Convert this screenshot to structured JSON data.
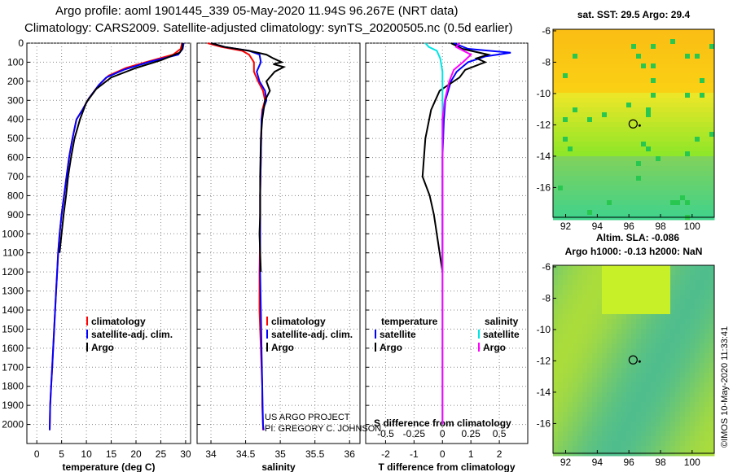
{
  "header": {
    "title_line1": "Argo profile: aoml 1901445_339 05-May-2020 11.94S 96.267E (NRT data)",
    "title_line2": "Climatology: CARS2009. Satellite-adjusted climatology: synTS_20200505.nc (0.5d earlier)"
  },
  "colors": {
    "climatology": "#ff0000",
    "satellite": "#0000ff",
    "argo": "#000000",
    "sat_T": "#0000ff",
    "sat_S": "#00e5e5",
    "argo_T": "#000000",
    "argo_S": "#ff00ff"
  },
  "credits": {
    "project": "US ARGO PROJECT",
    "pi": "PI: GREGORY C. JOHNSON",
    "imos": "©IMOS 10-May-2020 11:33:41"
  },
  "legends": {
    "temp": [
      {
        "key": "climatology",
        "label": "climatology"
      },
      {
        "key": "satellite",
        "label": "satellite-adj. clim."
      },
      {
        "key": "argo",
        "label": "Argo"
      }
    ],
    "sal": [
      {
        "key": "climatology",
        "label": "climatology"
      },
      {
        "key": "satellite",
        "label": "satellite-adj. clim."
      },
      {
        "key": "argo",
        "label": "Argo"
      }
    ],
    "diff_T_title": "temperature",
    "diff_S_title": "salinity",
    "diff_T": [
      {
        "key": "sat_T",
        "label": "satellite"
      },
      {
        "key": "argo_T",
        "label": "Argo"
      }
    ],
    "diff_S": [
      {
        "key": "sat_S",
        "label": "satellite"
      },
      {
        "key": "argo_S",
        "label": "Argo"
      }
    ],
    "s_diff_label": "S difference from climatology"
  },
  "maps": {
    "sst": {
      "title": "sat. SST: 29.5 Argo: 29.4",
      "xticks": [
        "92",
        "94",
        "96",
        "98",
        "100"
      ],
      "yticks": [
        "-6",
        "-8",
        "-10",
        "-12",
        "-14",
        "-16"
      ]
    },
    "ssh": {
      "title1": "Altim. SLA: -0.086",
      "title2": "Argo h1000: -0.13 h2000: NaN",
      "xticks": [
        "92",
        "94",
        "96",
        "98",
        "100"
      ],
      "yticks": [
        "-6",
        "-8",
        "-10",
        "-12",
        "-14",
        "-16"
      ]
    }
  },
  "chart_data": [
    {
      "type": "line",
      "name": "temperature",
      "xlabel": "temperature (deg C)",
      "ylabel": "",
      "xlim": [
        -2,
        31
      ],
      "ylim": [
        2100,
        0
      ],
      "xticks": [
        0,
        5,
        10,
        15,
        20,
        25,
        30
      ],
      "yticks": [
        0,
        100,
        200,
        300,
        400,
        500,
        600,
        700,
        800,
        900,
        1000,
        1100,
        1200,
        1300,
        1400,
        1500,
        1600,
        1700,
        1800,
        1900,
        2000
      ],
      "grid": true,
      "series": [
        {
          "name": "climatology",
          "color": "#ff0000",
          "x": [
            29.3,
            29.0,
            27.5,
            22.0,
            18.0,
            14.5,
            12.5,
            10.5,
            9.2,
            8.0,
            7.2,
            6.5,
            6.0,
            5.5,
            5.0,
            4.6,
            4.3,
            4.1,
            3.9,
            3.7,
            3.5,
            3.3,
            3.1,
            2.9,
            2.7,
            2.6
          ],
          "y": [
            0,
            30,
            60,
            100,
            130,
            170,
            220,
            290,
            350,
            400,
            500,
            600,
            700,
            800,
            900,
            1000,
            1100,
            1200,
            1300,
            1400,
            1500,
            1600,
            1700,
            1800,
            1900,
            2030
          ]
        },
        {
          "name": "satellite-adj. clim.",
          "color": "#0000ff",
          "x": [
            29.6,
            29.4,
            28.5,
            22.5,
            17.5,
            14.0,
            12.5,
            10.5,
            9.2,
            8.0,
            7.2,
            6.5,
            6.0,
            5.5,
            5.0,
            4.6,
            4.3,
            4.1,
            3.9,
            3.7,
            3.5,
            3.3,
            3.1,
            2.9,
            2.7,
            2.6
          ],
          "y": [
            0,
            30,
            60,
            100,
            140,
            180,
            220,
            290,
            350,
            400,
            500,
            600,
            700,
            800,
            900,
            1000,
            1100,
            1200,
            1300,
            1400,
            1500,
            1600,
            1700,
            1800,
            1900,
            2030
          ]
        },
        {
          "name": "Argo",
          "color": "#000000",
          "x": [
            29.4,
            29.3,
            28.8,
            25.0,
            20.0,
            15.0,
            12.0,
            10.0,
            8.7,
            7.6,
            6.9,
            6.3,
            5.9,
            5.4,
            5.0,
            4.6
          ],
          "y": [
            0,
            30,
            50,
            90,
            130,
            180,
            240,
            310,
            400,
            500,
            600,
            700,
            800,
            900,
            1000,
            1100
          ]
        }
      ]
    },
    {
      "type": "line",
      "name": "salinity",
      "xlabel": "salinity",
      "ylabel": "",
      "xlim": [
        33.8,
        36.15
      ],
      "ylim": [
        2100,
        0
      ],
      "xticks": [
        34,
        34.5,
        35,
        35.5,
        36
      ],
      "grid": true,
      "series": [
        {
          "name": "climatology",
          "color": "#ff0000",
          "x": [
            33.95,
            34.15,
            34.45,
            34.55,
            34.62,
            34.62,
            34.68,
            34.75,
            34.78,
            34.74,
            34.73,
            34.72,
            34.71,
            34.71,
            34.7,
            34.7,
            34.71,
            34.72,
            34.73,
            34.74,
            34.74,
            34.75,
            34.75
          ],
          "y": [
            0,
            20,
            40,
            60,
            100,
            150,
            200,
            250,
            300,
            350,
            400,
            600,
            800,
            1000,
            1200,
            1400,
            1500,
            1600,
            1700,
            1800,
            1900,
            2000,
            2030
          ]
        },
        {
          "name": "satellite-adj. clim.",
          "color": "#0000ff",
          "x": [
            34.0,
            34.2,
            34.55,
            34.7,
            34.72,
            34.66,
            34.7,
            34.78,
            34.8,
            34.75,
            34.73,
            34.72,
            34.71,
            34.71,
            34.71,
            34.72,
            34.73,
            34.74,
            34.75,
            34.76
          ],
          "y": [
            0,
            20,
            40,
            60,
            100,
            150,
            200,
            250,
            300,
            350,
            400,
            600,
            800,
            1000,
            1200,
            1400,
            1600,
            1800,
            2000,
            2030
          ]
        },
        {
          "name": "Argo",
          "color": "#000000",
          "x": [
            34.0,
            34.2,
            34.55,
            34.8,
            34.9,
            35.02,
            34.9,
            35.05,
            34.92,
            34.8,
            34.85,
            34.78,
            34.76,
            34.74,
            34.72,
            34.71,
            34.71,
            34.7,
            34.71,
            34.72
          ],
          "y": [
            0,
            20,
            40,
            60,
            80,
            100,
            110,
            125,
            150,
            200,
            250,
            300,
            350,
            400,
            500,
            700,
            900,
            1000,
            1100,
            1200
          ]
        }
      ]
    },
    {
      "type": "line",
      "name": "difference from climatology",
      "xlabel": "T difference from climatology",
      "x2label": "S difference from climatology",
      "xlim": [
        -2.7,
        3.0
      ],
      "ylim": [
        2100,
        0
      ],
      "xticks": [
        -2,
        -1,
        0,
        1,
        2
      ],
      "x2ticks": [
        -0.5,
        -0.25,
        0,
        0.25,
        0.5
      ],
      "grid": true,
      "series": [
        {
          "name": "satellite T",
          "color": "#0000ff",
          "x": [
            0.4,
            0.9,
            2.4,
            1.5,
            0.9,
            0.5,
            0.3,
            0.1,
            0.05,
            0.0,
            0.0
          ],
          "y": [
            0,
            30,
            50,
            70,
            100,
            150,
            200,
            300,
            400,
            600,
            1200
          ]
        },
        {
          "name": "Argo T",
          "color": "#000000",
          "x": [
            0.3,
            0.7,
            1.6,
            1.2,
            1.5,
            0.8,
            0.6,
            -0.1,
            -0.4,
            -0.6,
            -0.7,
            -0.45,
            -0.3,
            -0.2,
            -0.1,
            0.0
          ],
          "y": [
            0,
            30,
            60,
            80,
            100,
            140,
            180,
            250,
            350,
            500,
            700,
            800,
            900,
            1000,
            1100,
            1200
          ]
        },
        {
          "name": "satellite S",
          "color": "#00e5e5",
          "x": [
            -0.15,
            -0.12,
            -0.05,
            -0.02,
            0.0,
            0.0,
            0.0,
            0.0
          ],
          "y": [
            0,
            20,
            40,
            80,
            150,
            300,
            1000,
            2000
          ]
        },
        {
          "name": "Argo S",
          "color": "#ff00ff",
          "x": [
            0.15,
            0.12,
            0.25,
            0.18,
            0.1,
            0.06,
            0.02,
            0.0,
            0.0,
            0.0
          ],
          "y": [
            0,
            20,
            60,
            100,
            140,
            200,
            300,
            400,
            1000,
            2000
          ]
        }
      ]
    }
  ]
}
